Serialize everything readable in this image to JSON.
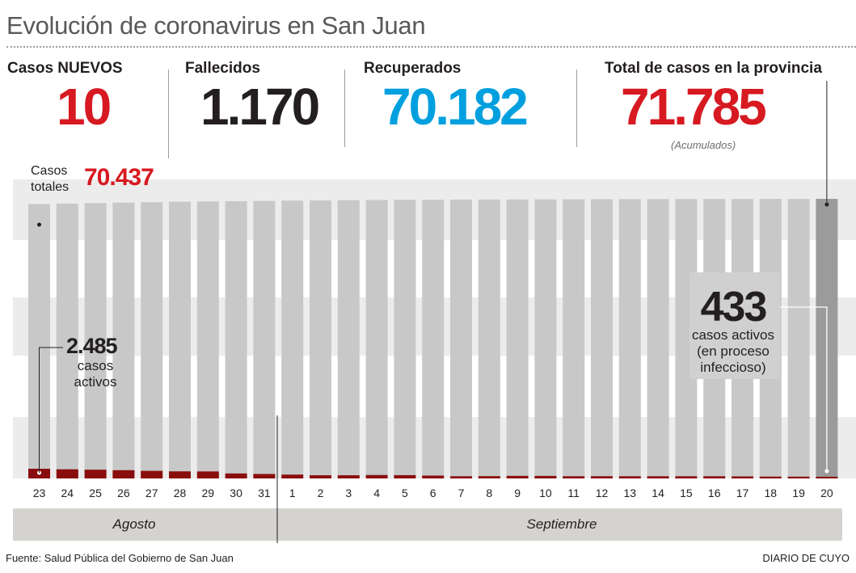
{
  "title": "Evolución de coronavirus en San Juan",
  "stats": {
    "new": {
      "label": "Casos NUEVOS",
      "value": "10"
    },
    "deaths": {
      "label": "Fallecidos",
      "value": "1.170"
    },
    "recovered": {
      "label": "Recuperados",
      "value": "70.182"
    },
    "total": {
      "label": "Total de casos en la provincia",
      "value": "71.785",
      "note": "(Acumulados)"
    }
  },
  "total_cases_label": "Casos totales",
  "total_cases_value": "70.437",
  "annotation_start": {
    "value": "2.485",
    "text": "casos activos"
  },
  "annotation_end": {
    "value": "433",
    "line1": "casos activos",
    "line2": "(en proceso",
    "line3": "infeccioso)"
  },
  "months": {
    "aug": "Agosto",
    "sep": "Septiembre"
  },
  "source": "Fuente: Salud Pública del Gobierno de San Juan",
  "credit": "DIARIO DE CUYO",
  "colors": {
    "red": "#d71921",
    "blue": "#00a0df",
    "dark": "#231f20",
    "bar_total": "#c8c8c8",
    "bar_last": "#9b9b9b",
    "bar_active": "#8a0d0d",
    "band": "#ececec",
    "month_bar": "#d4d3cf"
  },
  "chart_data": {
    "type": "bar",
    "categories": [
      "23",
      "24",
      "25",
      "26",
      "27",
      "28",
      "29",
      "30",
      "31",
      "1",
      "2",
      "3",
      "4",
      "5",
      "6",
      "7",
      "8",
      "9",
      "10",
      "11",
      "12",
      "13",
      "14",
      "15",
      "16",
      "17",
      "18",
      "19",
      "20"
    ],
    "series": [
      {
        "name": "Casos totales",
        "values": [
          70437,
          70570,
          70700,
          70820,
          70930,
          71030,
          71110,
          71190,
          71260,
          71330,
          71390,
          71440,
          71490,
          71530,
          71560,
          71590,
          71610,
          71630,
          71650,
          71670,
          71690,
          71705,
          71720,
          71735,
          71750,
          71760,
          71770,
          71775,
          71785
        ]
      },
      {
        "name": "casos activos",
        "values": [
          2485,
          2350,
          2250,
          2120,
          1950,
          1820,
          1800,
          1280,
          1150,
          990,
          820,
          820,
          880,
          850,
          730,
          560,
          590,
          660,
          650,
          560,
          570,
          560,
          560,
          560,
          560,
          520,
          470,
          460,
          433
        ]
      }
    ],
    "ylim": [
      0,
      72000
    ],
    "grid": true
  }
}
